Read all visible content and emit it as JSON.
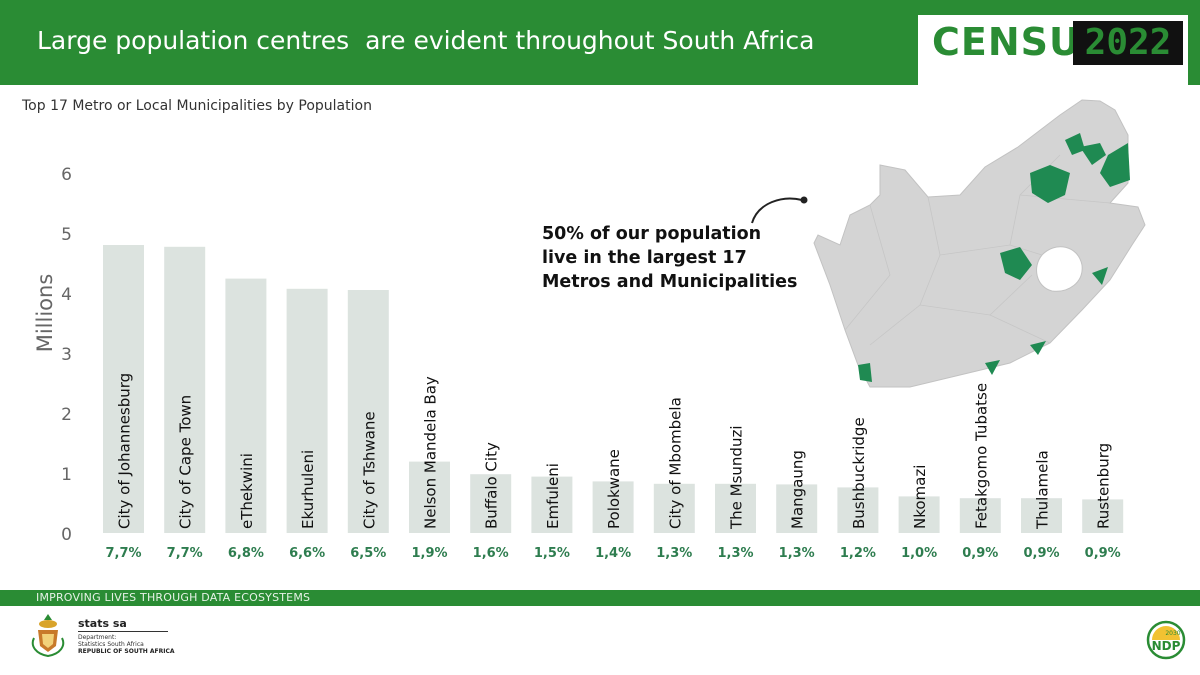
{
  "header": {
    "title": "Large population centres  are evident throughout South Africa",
    "census_word": "CENSUS",
    "census_year": "2022"
  },
  "subtitle": "Top 17 Metro or Local Municipalities by Population",
  "callout": {
    "lines": [
      "50% of our population",
      "live in the largest 17",
      "Metros and Municipalities"
    ]
  },
  "footer": {
    "tagline": "IMPROVING LIVES THROUGH DATA ECOSYSTEMS",
    "logo_name": "stats sa",
    "logo_dept_1": "Department:",
    "logo_dept_2": "Statistics South Africa",
    "logo_rsa": "REPUBLIC OF SOUTH AFRICA",
    "ndp_year": "2030",
    "ndp_label": "NDP"
  },
  "colors": {
    "brand_green": "#2a8c34",
    "bar_fill": "#dce3df",
    "percent_text": "#2e7d4f",
    "map_land": "#d4d4d4",
    "map_highlight": "#1f8a52"
  },
  "chart_data": {
    "type": "bar",
    "ylabel": "Millions",
    "ylim": [
      0,
      6
    ],
    "yticks": [
      0,
      1,
      2,
      3,
      4,
      5,
      6
    ],
    "grid": false,
    "categories": [
      "City of Johannesburg",
      "City of Cape Town",
      "eThekwini",
      "Ekurhuleni",
      "City of Tshwane",
      "Nelson Mandela Bay",
      "Buffalo City",
      "Emfuleni",
      "Polokwane",
      "City of Mbombela",
      "The Msunduzi",
      "Mangaung",
      "Bushbuckridge",
      "Nkomazi",
      "Fetakgomo Tubatse",
      "Thulamela",
      "Rustenburg"
    ],
    "values": [
      4.8,
      4.77,
      4.24,
      4.07,
      4.05,
      1.19,
      0.98,
      0.94,
      0.86,
      0.82,
      0.82,
      0.81,
      0.76,
      0.61,
      0.58,
      0.58,
      0.56
    ],
    "percent_labels": [
      "7,7%",
      "7,7%",
      "6,8%",
      "6,6%",
      "6,5%",
      "1,9%",
      "1,6%",
      "1,5%",
      "1,4%",
      "1,3%",
      "1,3%",
      "1,3%",
      "1,2%",
      "1,0%",
      "0,9%",
      "0,9%",
      "0,9%"
    ]
  }
}
